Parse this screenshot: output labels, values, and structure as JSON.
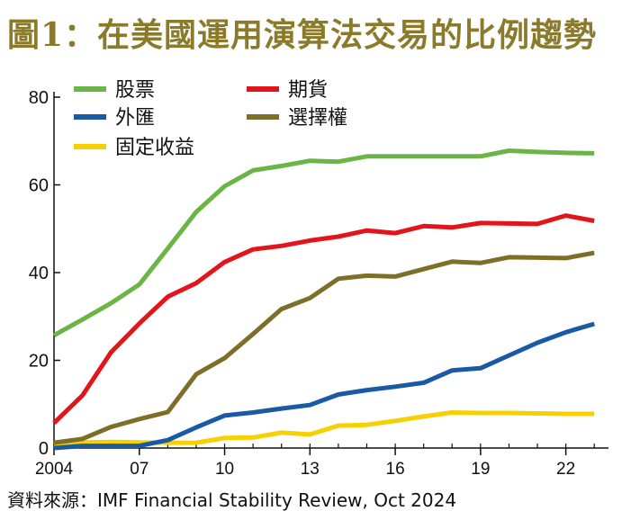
{
  "title": "圖1：在美國運用演算法交易的比例趨勢",
  "source": "資料來源：IMF Financial Stability Review, Oct 2024",
  "chart_data": {
    "type": "line",
    "title": "圖1：在美國運用演算法交易的比例趨勢",
    "xlabel": "",
    "ylabel": "",
    "ylim": [
      0,
      80
    ],
    "xlim": [
      2004,
      2023.5
    ],
    "grid": false,
    "legend": "top-left",
    "yticks": [
      0,
      20,
      40,
      60,
      80
    ],
    "xticks": [
      {
        "value": 2004,
        "label": "2004"
      },
      {
        "value": 2007,
        "label": "07"
      },
      {
        "value": 2010,
        "label": "10"
      },
      {
        "value": 2013,
        "label": "13"
      },
      {
        "value": 2016,
        "label": "16"
      },
      {
        "value": 2019,
        "label": "19"
      },
      {
        "value": 2022,
        "label": "22"
      }
    ],
    "x": [
      2004,
      2005,
      2006,
      2007,
      2008,
      2009,
      2010,
      2011,
      2012,
      2013,
      2014,
      2015,
      2016,
      2017,
      2018,
      2019,
      2020,
      2021,
      2022,
      2023
    ],
    "series": [
      {
        "name": "股票",
        "color": "#6ab545",
        "values": [
          25.7,
          29.3,
          33.0,
          37.3,
          45.5,
          53.8,
          59.7,
          63.3,
          64.3,
          65.5,
          65.3,
          66.5,
          66.5,
          66.5,
          66.5,
          66.5,
          67.8,
          67.5,
          67.3,
          67.2
        ]
      },
      {
        "name": "期貨",
        "color": "#e3141b",
        "values": [
          5.7,
          12.0,
          21.8,
          28.4,
          34.5,
          37.6,
          42.4,
          45.3,
          46.1,
          47.3,
          48.2,
          49.6,
          49.0,
          50.6,
          50.3,
          51.3,
          51.2,
          51.1,
          53.0,
          51.8
        ]
      },
      {
        "name": "外匯",
        "color": "#1a5aa5",
        "values": [
          0.0,
          0.5,
          0.5,
          0.5,
          1.8,
          4.7,
          7.4,
          8.1,
          9.0,
          9.8,
          12.2,
          13.2,
          14.0,
          14.9,
          17.7,
          18.2,
          21.1,
          24.0,
          26.4,
          28.3
        ]
      },
      {
        "name": "選擇權",
        "color": "#7d6f28",
        "values": [
          1.2,
          2.1,
          4.8,
          6.6,
          8.2,
          16.8,
          20.5,
          26.0,
          31.7,
          34.2,
          38.6,
          39.3,
          39.1,
          40.8,
          42.5,
          42.2,
          43.5,
          43.4,
          43.3,
          44.5
        ]
      },
      {
        "name": "固定收益",
        "color": "#f7d000",
        "values": [
          0.8,
          1.3,
          1.4,
          1.3,
          1.2,
          1.2,
          2.3,
          2.4,
          3.5,
          3.1,
          5.1,
          5.3,
          6.2,
          7.2,
          8.1,
          8.0,
          8.0,
          7.9,
          7.8,
          7.8
        ]
      }
    ]
  }
}
